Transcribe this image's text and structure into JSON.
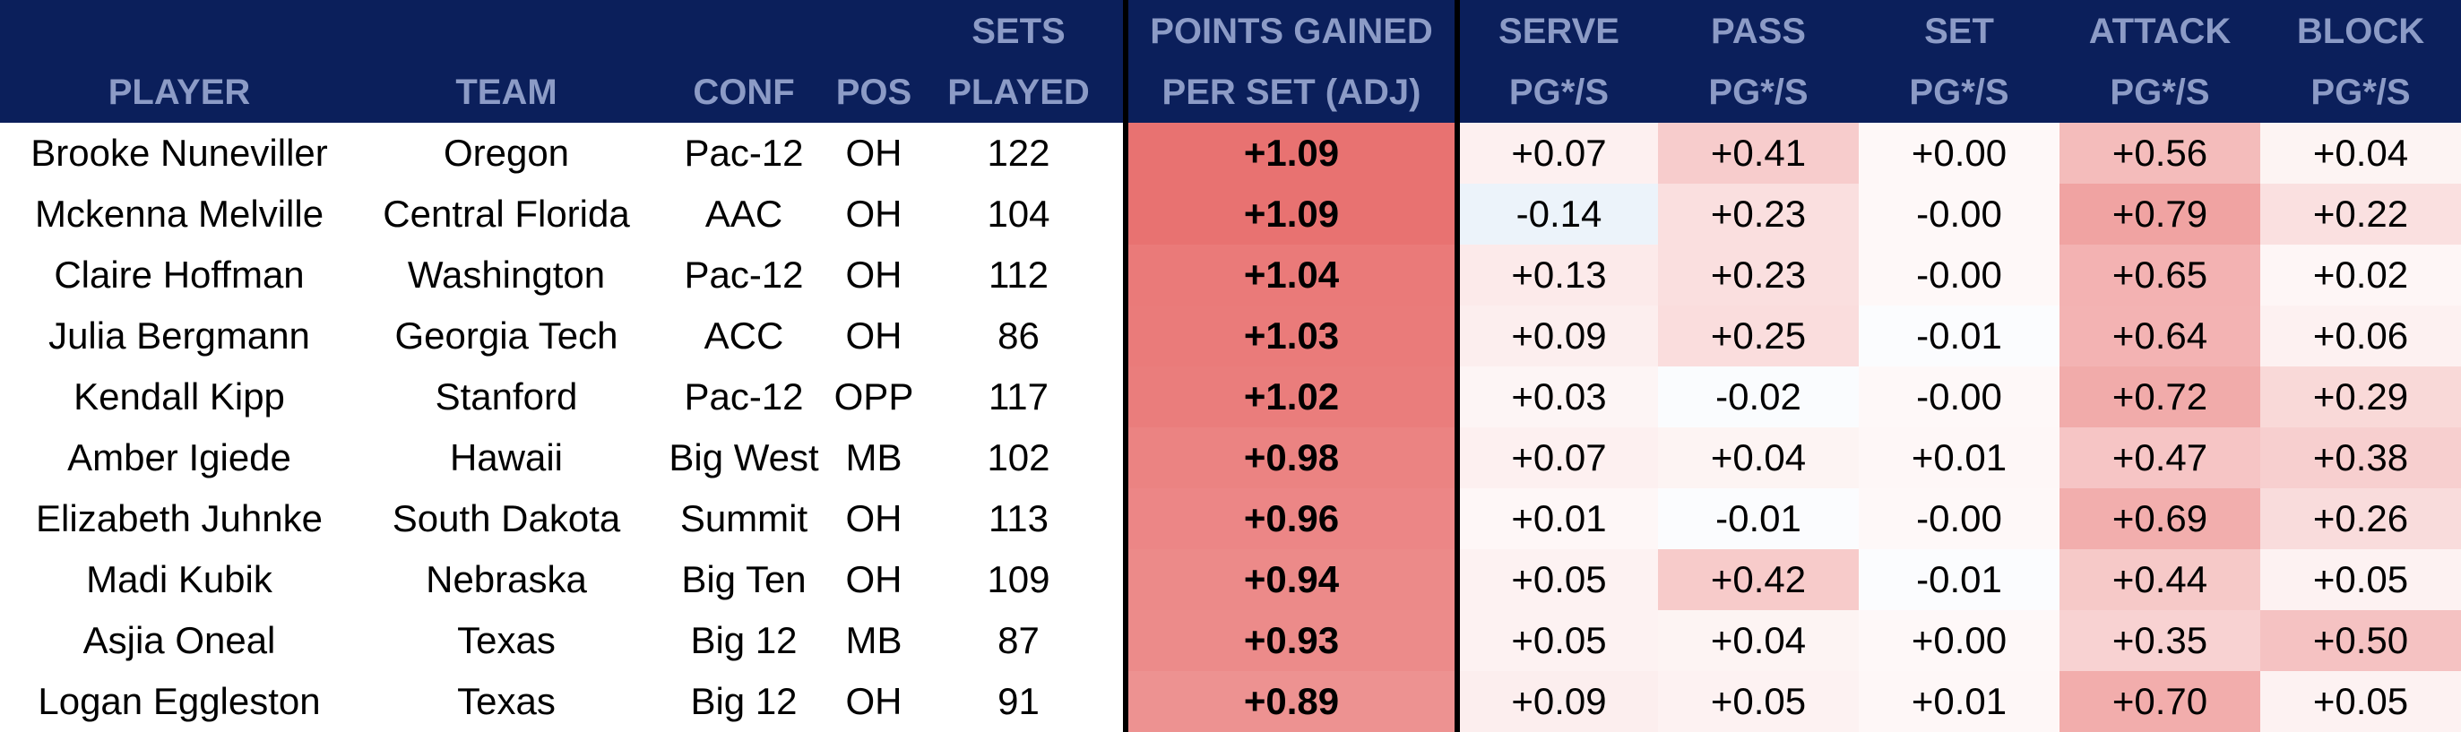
{
  "headers": [
    {
      "key": "player",
      "line1": "",
      "line2": "PLAYER"
    },
    {
      "key": "team",
      "line1": "",
      "line2": "TEAM"
    },
    {
      "key": "conf",
      "line1": "",
      "line2": "CONF"
    },
    {
      "key": "pos",
      "line1": "",
      "line2": "POS"
    },
    {
      "key": "sets",
      "line1": "SETS",
      "line2": "PLAYED"
    },
    {
      "key": "pg",
      "line1": "POINTS GAINED",
      "line2": "PER SET (ADJ)"
    },
    {
      "key": "serve",
      "line1": "SERVE",
      "line2": "PG*/S"
    },
    {
      "key": "pass",
      "line1": "PASS",
      "line2": "PG*/S"
    },
    {
      "key": "set",
      "line1": "SET",
      "line2": "PG*/S"
    },
    {
      "key": "attack",
      "line1": "ATTACK",
      "line2": "PG*/S"
    },
    {
      "key": "block",
      "line1": "BLOCK",
      "line2": "PG*/S"
    }
  ],
  "rows": [
    {
      "player": "Brooke Nuneviller",
      "team": "Oregon",
      "conf": "Pac-12",
      "pos": "OH",
      "sets": "122",
      "pg": "+1.09",
      "serve": "+0.07",
      "pass": "+0.41",
      "set": "+0.00",
      "attack": "+0.56",
      "block": "+0.04"
    },
    {
      "player": "Mckenna Melville",
      "team": "Central Florida",
      "conf": "AAC",
      "pos": "OH",
      "sets": "104",
      "pg": "+1.09",
      "serve": "-0.14",
      "pass": "+0.23",
      "set": "-0.00",
      "attack": "+0.79",
      "block": "+0.22"
    },
    {
      "player": "Claire Hoffman",
      "team": "Washington",
      "conf": "Pac-12",
      "pos": "OH",
      "sets": "112",
      "pg": "+1.04",
      "serve": "+0.13",
      "pass": "+0.23",
      "set": "-0.00",
      "attack": "+0.65",
      "block": "+0.02"
    },
    {
      "player": "Julia Bergmann",
      "team": "Georgia Tech",
      "conf": "ACC",
      "pos": "OH",
      "sets": "86",
      "pg": "+1.03",
      "serve": "+0.09",
      "pass": "+0.25",
      "set": "-0.01",
      "attack": "+0.64",
      "block": "+0.06"
    },
    {
      "player": "Kendall Kipp",
      "team": "Stanford",
      "conf": "Pac-12",
      "pos": "OPP",
      "sets": "117",
      "pg": "+1.02",
      "serve": "+0.03",
      "pass": "-0.02",
      "set": "-0.00",
      "attack": "+0.72",
      "block": "+0.29"
    },
    {
      "player": "Amber Igiede",
      "team": "Hawaii",
      "conf": "Big West",
      "pos": "MB",
      "sets": "102",
      "pg": "+0.98",
      "serve": "+0.07",
      "pass": "+0.04",
      "set": "+0.01",
      "attack": "+0.47",
      "block": "+0.38"
    },
    {
      "player": "Elizabeth Juhnke",
      "team": "South Dakota",
      "conf": "Summit",
      "pos": "OH",
      "sets": "113",
      "pg": "+0.96",
      "serve": "+0.01",
      "pass": "-0.01",
      "set": "-0.00",
      "attack": "+0.69",
      "block": "+0.26"
    },
    {
      "player": "Madi Kubik",
      "team": "Nebraska",
      "conf": "Big Ten",
      "pos": "OH",
      "sets": "109",
      "pg": "+0.94",
      "serve": "+0.05",
      "pass": "+0.42",
      "set": "-0.01",
      "attack": "+0.44",
      "block": "+0.05"
    },
    {
      "player": "Asjia Oneal",
      "team": "Texas",
      "conf": "Big 12",
      "pos": "MB",
      "sets": "87",
      "pg": "+0.93",
      "serve": "+0.05",
      "pass": "+0.04",
      "set": "+0.00",
      "attack": "+0.35",
      "block": "+0.50"
    },
    {
      "player": "Logan Eggleston",
      "team": "Texas",
      "conf": "Big 12",
      "pos": "OH",
      "sets": "91",
      "pg": "+0.89",
      "serve": "+0.09",
      "pass": "+0.05",
      "set": "+0.01",
      "attack": "+0.70",
      "block": "+0.05"
    }
  ],
  "colors": {
    "header_bg": "#0b1f5b",
    "header_text": "#8c9bc6",
    "separator": "#000000",
    "heat_positive": "#e8706f",
    "heat_negative": "#c6dbef"
  }
}
